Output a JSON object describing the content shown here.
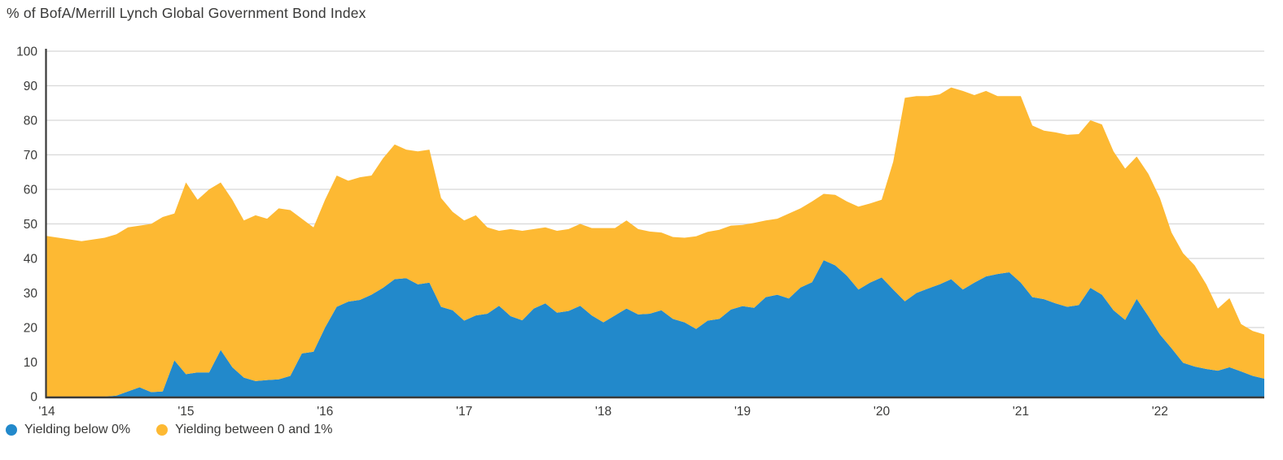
{
  "title": "% of BofA/Merrill Lynch Global Government Bond Index",
  "colors": {
    "below0": "#2289cb",
    "between01": "#fdb933",
    "grid": "#d8d8d8",
    "axis": "#3a3a39",
    "text": "#383837"
  },
  "legend": [
    {
      "label": "Yielding below 0%",
      "color_key": "below0"
    },
    {
      "label": "Yielding between 0 and 1%",
      "color_key": "between01"
    }
  ],
  "chart_data": {
    "type": "area",
    "stacked": true,
    "title": "% of BofA/Merrill Lynch Global Government Bond Index",
    "xlabel": "",
    "ylabel": "",
    "x_unit": "month",
    "x_start": "2014-01",
    "x_end": "2022-10",
    "x_tick_labels": [
      "'14",
      "'15",
      "'16",
      "'17",
      "'18",
      "'19",
      "'20",
      "'21",
      "'22"
    ],
    "ylim": [
      0,
      100
    ],
    "y_ticks": [
      0,
      10,
      20,
      30,
      40,
      50,
      60,
      70,
      80,
      90,
      100
    ],
    "grid": true,
    "legend_position": "bottom-left",
    "series": [
      {
        "name": "Yielding below 0%",
        "color": "#2289cb",
        "values": [
          0,
          0,
          0,
          0,
          0,
          0,
          0.3,
          1.5,
          2.7,
          1.3,
          1.5,
          10.5,
          6.5,
          7,
          7,
          13.5,
          8.5,
          5.5,
          4.5,
          4.8,
          5,
          6,
          12.5,
          13,
          20,
          26,
          27.5,
          28,
          29.5,
          31.5,
          34,
          34.3,
          32.5,
          33,
          26,
          25,
          22,
          23.5,
          24,
          26.3,
          23.3,
          22.1,
          25.5,
          27,
          24.3,
          24.8,
          26.3,
          23.5,
          21.5,
          23.5,
          25.5,
          23.8,
          24,
          25,
          22.5,
          21.5,
          19.6,
          22,
          22.5,
          25.2,
          26.2,
          25.7,
          28.8,
          29.5,
          28.4,
          31.6,
          33.1,
          39.5,
          38,
          35,
          31,
          33,
          34.5,
          31,
          27.6,
          30,
          31.3,
          32.5,
          34,
          31,
          33,
          34.8,
          35.5,
          36,
          33,
          28.8,
          28.2,
          27,
          26,
          26.5,
          31.5,
          29.5,
          25,
          22.2,
          28.3,
          23.3,
          18,
          14,
          9.8,
          8.7,
          8,
          7.5,
          8.5,
          7.3,
          6,
          5.2
        ]
      },
      {
        "name": "Yielding between 0 and 1%",
        "color": "#fdb933",
        "values": [
          46.5,
          46,
          45.5,
          45,
          45.5,
          46,
          46.7,
          47.5,
          46.8,
          48.7,
          50.5,
          42.5,
          55.5,
          50,
          53,
          48.5,
          48.5,
          45.5,
          48,
          46.7,
          49.5,
          48,
          39,
          36,
          37,
          38,
          35,
          35.5,
          34.5,
          37.5,
          39,
          37.2,
          38.5,
          38.5,
          31.5,
          28.5,
          29,
          29,
          25,
          21.7,
          25.2,
          25.9,
          23,
          22,
          23.7,
          23.7,
          23.7,
          25.3,
          27.3,
          25.3,
          25.5,
          24.7,
          23.8,
          22.5,
          23.7,
          24.5,
          26.8,
          25.7,
          25.8,
          24.3,
          23.5,
          24.6,
          22.2,
          22,
          24.6,
          22.9,
          23.4,
          19.2,
          20.4,
          21.5,
          24,
          22.9,
          22.5,
          37,
          58.9,
          57,
          55.7,
          55,
          55.5,
          57.5,
          54.3,
          53.7,
          51.5,
          51,
          54,
          49.7,
          48.8,
          49.5,
          49.8,
          49.5,
          48.5,
          49.3,
          46,
          43.8,
          41.2,
          41.2,
          39.5,
          33.5,
          31.7,
          29.3,
          24.5,
          18,
          20,
          13.7,
          13,
          12.8
        ]
      }
    ]
  }
}
